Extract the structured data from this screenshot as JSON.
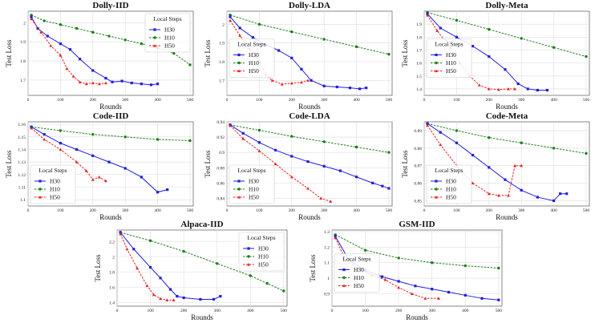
{
  "figure": {
    "description_label": "Test loss vs rounds for local steps"
  },
  "legend": {
    "title": "Local Steps",
    "entries": [
      {
        "label": "H30",
        "color": "#1f1fe0",
        "marker": "square"
      },
      {
        "label": "H10",
        "color": "#1a7f1a",
        "marker": "circle"
      },
      {
        "label": "H50",
        "color": "#e82020",
        "marker": "triangle"
      }
    ]
  },
  "chart_data": [
    {
      "type": "line",
      "title": "Dolly-IID",
      "xlabel": "Rounds",
      "ylabel": "Test Loss",
      "xlim": [
        0,
        510
      ],
      "ylim": [
        1.62,
        2.06
      ],
      "xticks": [
        0,
        100,
        200,
        300,
        400,
        500
      ],
      "yticks": [
        1.7,
        1.8,
        1.9,
        2.0
      ],
      "legend_position": "top-right",
      "series": [
        {
          "name": "H30",
          "x": [
            10,
            30,
            60,
            100,
            130,
            160,
            200,
            240,
            260,
            290,
            320,
            350,
            380,
            400
          ],
          "y": [
            2.03,
            1.97,
            1.93,
            1.89,
            1.86,
            1.81,
            1.75,
            1.71,
            1.69,
            1.695,
            1.685,
            1.68,
            1.675,
            1.68
          ]
        },
        {
          "name": "H10",
          "x": [
            10,
            50,
            100,
            150,
            200,
            250,
            300,
            350,
            400,
            450,
            500
          ],
          "y": [
            2.04,
            2.01,
            1.99,
            1.97,
            1.95,
            1.93,
            1.91,
            1.89,
            1.87,
            1.84,
            1.78
          ]
        },
        {
          "name": "H50",
          "x": [
            10,
            40,
            70,
            100,
            120,
            140,
            160,
            180,
            200,
            220,
            240
          ],
          "y": [
            2.02,
            1.95,
            1.88,
            1.83,
            1.76,
            1.72,
            1.69,
            1.68,
            1.685,
            1.68,
            1.685
          ]
        }
      ]
    },
    {
      "type": "line",
      "title": "Dolly-LDA",
      "xlabel": "Rounds",
      "ylabel": "Test Loss",
      "xlim": [
        0,
        510
      ],
      "ylim": [
        1.62,
        2.07
      ],
      "xticks": [
        0,
        100,
        200,
        300,
        400,
        500
      ],
      "yticks": [
        1.7,
        1.8,
        1.9,
        2.0
      ],
      "legend_position": "middle-left",
      "series": [
        {
          "name": "H30",
          "x": [
            10,
            40,
            80,
            120,
            160,
            200,
            230,
            260,
            300,
            340,
            380,
            410,
            430
          ],
          "y": [
            2.04,
            1.98,
            1.93,
            1.89,
            1.86,
            1.82,
            1.76,
            1.7,
            1.67,
            1.665,
            1.66,
            1.655,
            1.66
          ]
        },
        {
          "name": "H10",
          "x": [
            10,
            100,
            200,
            300,
            400,
            500
          ],
          "y": [
            2.05,
            2.0,
            1.96,
            1.92,
            1.88,
            1.84
          ]
        },
        {
          "name": "H50",
          "x": [
            10,
            40,
            70,
            100,
            120,
            140,
            170,
            200,
            230,
            250
          ],
          "y": [
            2.02,
            1.94,
            1.87,
            1.8,
            1.73,
            1.7,
            1.68,
            1.685,
            1.69,
            1.7
          ]
        }
      ]
    },
    {
      "type": "line",
      "title": "Dolly-Meta",
      "xlabel": "Rounds",
      "ylabel": "Test Loss",
      "xlim": [
        0,
        510
      ],
      "ylim": [
        1.35,
        2.0
      ],
      "xticks": [
        0,
        100,
        200,
        300,
        400,
        500
      ],
      "yticks": [
        1.4,
        1.5,
        1.6,
        1.7,
        1.8,
        1.9
      ],
      "legend_position": "middle-left",
      "series": [
        {
          "name": "H30",
          "x": [
            10,
            50,
            100,
            150,
            200,
            250,
            290,
            320,
            350,
            380
          ],
          "y": [
            1.98,
            1.87,
            1.8,
            1.73,
            1.65,
            1.55,
            1.44,
            1.4,
            1.39,
            1.39
          ]
        },
        {
          "name": "H10",
          "x": [
            10,
            100,
            200,
            300,
            400,
            500
          ],
          "y": [
            1.99,
            1.93,
            1.86,
            1.79,
            1.72,
            1.65
          ]
        },
        {
          "name": "H50",
          "x": [
            10,
            40,
            80,
            110,
            140,
            170,
            200,
            230,
            260,
            280
          ],
          "y": [
            1.97,
            1.85,
            1.72,
            1.6,
            1.5,
            1.43,
            1.4,
            1.395,
            1.4,
            1.4
          ]
        }
      ]
    },
    {
      "type": "line",
      "title": "Code-IID",
      "xlabel": "Rounds",
      "ylabel": "Test Loss",
      "xlim": [
        0,
        510
      ],
      "ylim": [
        1.095,
        1.162
      ],
      "xticks": [
        0,
        100,
        200,
        300,
        400,
        500
      ],
      "yticks": [
        1.1,
        1.11,
        1.12,
        1.13,
        1.14,
        1.15,
        1.16
      ],
      "legend_position": "bottom-left",
      "series": [
        {
          "name": "H30",
          "x": [
            10,
            50,
            100,
            150,
            200,
            250,
            300,
            350,
            400,
            430
          ],
          "y": [
            1.158,
            1.152,
            1.145,
            1.14,
            1.135,
            1.13,
            1.125,
            1.118,
            1.106,
            1.108
          ]
        },
        {
          "name": "H10",
          "x": [
            10,
            100,
            200,
            300,
            400,
            500
          ],
          "y": [
            1.158,
            1.155,
            1.152,
            1.15,
            1.148,
            1.147
          ]
        },
        {
          "name": "H50",
          "x": [
            10,
            50,
            100,
            150,
            180,
            200,
            220,
            240
          ],
          "y": [
            1.157,
            1.148,
            1.14,
            1.13,
            1.123,
            1.116,
            1.118,
            1.115
          ]
        }
      ]
    },
    {
      "type": "line",
      "title": "Code-LDA",
      "xlabel": "Rounds",
      "ylabel": "Test Loss",
      "xlim": [
        0,
        510
      ],
      "ylim": [
        0.83,
        0.94
      ],
      "xticks": [
        0,
        100,
        200,
        300,
        400,
        500
      ],
      "yticks": [
        0.84,
        0.86,
        0.88,
        0.9,
        0.92,
        0.94
      ],
      "legend_position": "bottom-left",
      "series": [
        {
          "name": "H30",
          "x": [
            10,
            50,
            100,
            150,
            200,
            250,
            300,
            350,
            400,
            450,
            480,
            500
          ],
          "y": [
            0.936,
            0.925,
            0.913,
            0.903,
            0.895,
            0.888,
            0.882,
            0.876,
            0.868,
            0.86,
            0.856,
            0.853
          ]
        },
        {
          "name": "H10",
          "x": [
            10,
            100,
            200,
            300,
            400,
            500
          ],
          "y": [
            0.936,
            0.929,
            0.921,
            0.914,
            0.907,
            0.9
          ]
        },
        {
          "name": "H50",
          "x": [
            10,
            50,
            100,
            150,
            200,
            250,
            290,
            320
          ],
          "y": [
            0.935,
            0.918,
            0.902,
            0.885,
            0.868,
            0.853,
            0.84,
            0.836
          ]
        }
      ]
    },
    {
      "type": "line",
      "title": "Code-Meta",
      "xlabel": "Rounds",
      "ylabel": "Test Loss",
      "xlim": [
        0,
        510
      ],
      "ylim": [
        0.847,
        0.895
      ],
      "xticks": [
        0,
        100,
        200,
        300,
        400,
        500
      ],
      "yticks": [
        0.85,
        0.86,
        0.87,
        0.88,
        0.89
      ],
      "legend_position": "bottom-left",
      "series": [
        {
          "name": "H30",
          "x": [
            10,
            50,
            100,
            150,
            200,
            250,
            300,
            350,
            400,
            420,
            440
          ],
          "y": [
            0.894,
            0.889,
            0.883,
            0.876,
            0.869,
            0.862,
            0.856,
            0.852,
            0.85,
            0.854,
            0.854
          ]
        },
        {
          "name": "H10",
          "x": [
            10,
            100,
            200,
            300,
            400,
            500
          ],
          "y": [
            0.894,
            0.89,
            0.886,
            0.883,
            0.88,
            0.877
          ]
        },
        {
          "name": "H50",
          "x": [
            10,
            50,
            100,
            150,
            200,
            230,
            260,
            280,
            300
          ],
          "y": [
            0.893,
            0.882,
            0.87,
            0.86,
            0.854,
            0.853,
            0.853,
            0.87,
            0.87
          ]
        }
      ]
    },
    {
      "type": "line",
      "title": "Alpaca-IID",
      "xlabel": "Rounds",
      "ylabel": "Test Loss",
      "xlim": [
        0,
        510
      ],
      "ylim": [
        1.35,
        2.35
      ],
      "xticks": [
        0,
        100,
        200,
        300,
        400,
        500
      ],
      "yticks": [
        1.4,
        1.6,
        1.8,
        2.0,
        2.2
      ],
      "legend_position": "top-right",
      "series": [
        {
          "name": "H30",
          "x": [
            10,
            50,
            100,
            130,
            160,
            180,
            200,
            250,
            290,
            310
          ],
          "y": [
            2.32,
            2.1,
            1.86,
            1.72,
            1.57,
            1.48,
            1.46,
            1.44,
            1.44,
            1.48
          ]
        },
        {
          "name": "H10",
          "x": [
            10,
            100,
            200,
            300,
            400,
            450,
            500
          ],
          "y": [
            2.32,
            2.21,
            2.07,
            1.91,
            1.75,
            1.65,
            1.55
          ]
        },
        {
          "name": "H50",
          "x": [
            10,
            30,
            60,
            90,
            110,
            130,
            150,
            170
          ],
          "y": [
            2.3,
            2.1,
            1.85,
            1.62,
            1.5,
            1.45,
            1.43,
            1.43
          ]
        }
      ]
    },
    {
      "type": "line",
      "title": "GSM-IID",
      "xlabel": "Rounds",
      "ylabel": "Test Loss",
      "xlim": [
        0,
        510
      ],
      "ylim": [
        0.82,
        1.31
      ],
      "xticks": [
        0,
        100,
        200,
        300,
        400,
        500
      ],
      "yticks": [
        0.9,
        1.0,
        1.1,
        1.2,
        1.3
      ],
      "legend_position": "middle-left",
      "series": [
        {
          "name": "H30",
          "x": [
            10,
            50,
            100,
            150,
            200,
            250,
            300,
            350,
            400,
            450,
            500
          ],
          "y": [
            1.27,
            1.12,
            1.05,
            1.01,
            0.98,
            0.95,
            0.93,
            0.91,
            0.89,
            0.87,
            0.86
          ]
        },
        {
          "name": "H10",
          "x": [
            10,
            100,
            200,
            300,
            400,
            500
          ],
          "y": [
            1.28,
            1.18,
            1.13,
            1.1,
            1.08,
            1.065
          ]
        },
        {
          "name": "H50",
          "x": [
            10,
            40,
            80,
            120,
            160,
            200,
            240,
            280,
            320
          ],
          "y": [
            1.26,
            1.12,
            1.06,
            1.02,
            0.99,
            0.94,
            0.9,
            0.87,
            0.87
          ]
        }
      ]
    }
  ]
}
